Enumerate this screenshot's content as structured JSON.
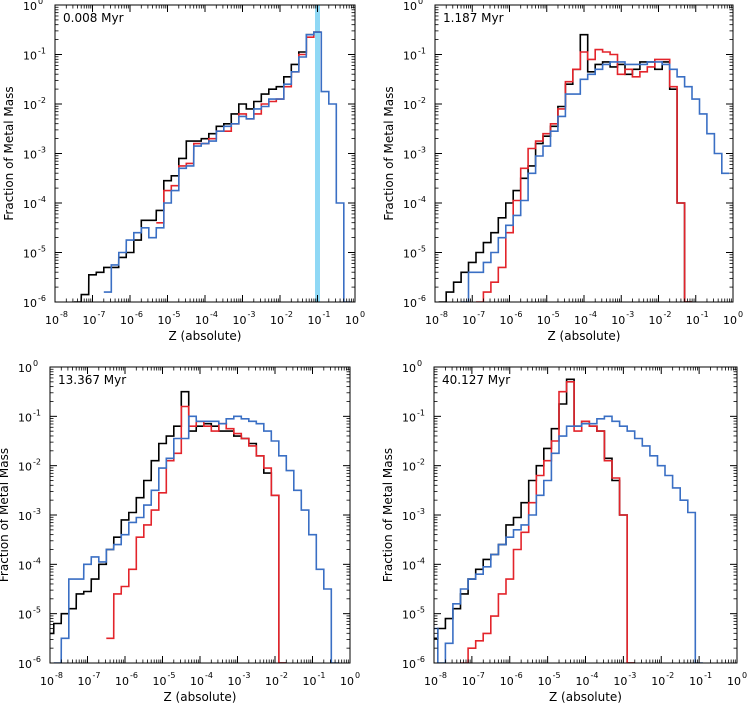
{
  "chart_data": [
    {
      "type": "line",
      "title": "0.008 Myr",
      "xlabel": "Z (absolute)",
      "ylabel": "Fraction of Metal Mass",
      "xscale": "log",
      "yscale": "log",
      "xlim": [
        1e-08,
        1
      ],
      "ylim": [
        1e-06,
        1
      ],
      "xtick_labels": [
        "10",
        "10",
        "10",
        "10",
        "10",
        "10",
        "10",
        "10",
        "10"
      ],
      "xtick_exps": [
        "-8",
        "-7",
        "-6",
        "-5",
        "-4",
        "-3",
        "-2",
        "-1",
        "0"
      ],
      "ytick_labels": [
        "10",
        "10",
        "10",
        "10",
        "10",
        "10",
        "10"
      ],
      "ytick_exps": [
        "-6",
        "-5",
        "-4",
        "-3",
        "-2",
        "-1",
        "0"
      ],
      "highlight_log_x": -1.0,
      "series": [
        {
          "name": "black",
          "color": "#000000",
          "log_x": [
            -7.4,
            -7.2,
            -7.0,
            -6.8,
            -6.6,
            -6.4,
            -6.2,
            -6.0,
            -5.8,
            -5.6,
            -5.4,
            -5.2,
            -5.0,
            -4.8,
            -4.6,
            -4.4,
            -4.2,
            -4.0,
            -3.8,
            -3.6,
            -3.4,
            -3.2,
            -3.0,
            -2.8,
            -2.6,
            -2.4,
            -2.2,
            -2.0,
            -1.8,
            -1.6,
            -1.4,
            -1.2,
            -1.0
          ],
          "log_y": [
            -6.0,
            -5.85,
            -5.45,
            -5.4,
            -5.3,
            -5.3,
            -5.1,
            -5.0,
            -4.75,
            -4.35,
            -4.35,
            -4.15,
            -3.55,
            -3.45,
            -3.1,
            -2.75,
            -2.75,
            -2.7,
            -2.6,
            -2.45,
            -2.4,
            -2.2,
            -2.0,
            -2.1,
            -1.95,
            -1.8,
            -1.7,
            -1.65,
            -1.45,
            -1.2,
            -0.95,
            -0.6,
            -0.55
          ]
        },
        {
          "name": "red",
          "color": "#e3242b",
          "log_x": [
            -5.2,
            -5.0,
            -4.8,
            -4.6,
            -4.4,
            -4.2,
            -4.0,
            -3.8,
            -3.6,
            -3.4,
            -3.2,
            -3.0,
            -2.8,
            -2.6,
            -2.4,
            -2.2,
            -2.0,
            -1.8,
            -1.6,
            -1.4,
            -1.2,
            -1.0
          ],
          "log_y": [
            -4.4,
            -3.75,
            -3.65,
            -3.25,
            -3.2,
            -2.8,
            -2.8,
            -2.7,
            -2.55,
            -2.55,
            -2.4,
            -2.2,
            -2.3,
            -2.2,
            -2.0,
            -1.95,
            -1.9,
            -1.65,
            -1.35,
            -1.0,
            -0.65,
            -0.55
          ]
        },
        {
          "name": "blue",
          "color": "#3a6fc4",
          "log_x": [
            -6.6,
            -6.4,
            -6.2,
            -6.0,
            -5.8,
            -5.6,
            -5.4,
            -5.2,
            -5.0,
            -4.8,
            -4.6,
            -4.4,
            -4.2,
            -4.0,
            -3.8,
            -3.6,
            -3.4,
            -3.2,
            -3.0,
            -2.8,
            -2.6,
            -2.4,
            -2.2,
            -2.0,
            -1.8,
            -1.6,
            -1.4,
            -1.2,
            -1.0,
            -0.8,
            -0.6,
            -0.4,
            -0.2
          ],
          "log_y": [
            -5.8,
            -5.25,
            -5.0,
            -4.75,
            -4.6,
            -4.5,
            -4.7,
            -4.5,
            -4.0,
            -3.75,
            -3.3,
            -3.25,
            -2.85,
            -2.8,
            -2.75,
            -2.55,
            -2.45,
            -2.4,
            -2.25,
            -2.3,
            -2.1,
            -2.05,
            -1.9,
            -1.9,
            -1.6,
            -1.35,
            -1.05,
            -0.6,
            -0.55,
            -1.75,
            -2.0,
            -4.0,
            -6.0
          ]
        }
      ]
    },
    {
      "type": "line",
      "title": "1.187 Myr",
      "xlabel": "Z (absolute)",
      "ylabel": "Fraction of Metal Mass",
      "xscale": "log",
      "yscale": "log",
      "xlim": [
        1e-08,
        1
      ],
      "ylim": [
        1e-06,
        1
      ],
      "xtick_labels": [
        "10",
        "10",
        "10",
        "10",
        "10",
        "10",
        "10",
        "10",
        "10"
      ],
      "xtick_exps": [
        "-8",
        "-7",
        "-6",
        "-5",
        "-4",
        "-3",
        "-2",
        "-1",
        "0"
      ],
      "ytick_labels": [
        "10",
        "10",
        "10",
        "10",
        "10",
        "10",
        "10"
      ],
      "ytick_exps": [
        "-6",
        "-5",
        "-4",
        "-3",
        "-2",
        "-1",
        "0"
      ],
      "series": [
        {
          "name": "black",
          "color": "#000000",
          "log_x": [
            -7.8,
            -7.6,
            -7.4,
            -7.2,
            -7.0,
            -6.8,
            -6.6,
            -6.4,
            -6.2,
            -6.0,
            -5.8,
            -5.6,
            -5.4,
            -5.2,
            -5.0,
            -4.8,
            -4.6,
            -4.4,
            -4.2,
            -4.0,
            -3.8,
            -3.6,
            -3.4,
            -3.2,
            -3.0,
            -2.8,
            -2.6,
            -2.4,
            -2.2,
            -2.0,
            -1.8,
            -1.6,
            -1.4,
            -1.2
          ],
          "log_y": [
            -6.0,
            -5.8,
            -5.6,
            -5.4,
            -5.2,
            -5.0,
            -4.8,
            -4.6,
            -4.3,
            -4.0,
            -3.75,
            -3.5,
            -3.25,
            -2.8,
            -2.65,
            -2.45,
            -2.05,
            -1.6,
            -1.3,
            -0.6,
            -1.35,
            -1.2,
            -1.15,
            -1.25,
            -1.2,
            -1.4,
            -1.3,
            -1.15,
            -1.15,
            -1.3,
            -1.15,
            -1.7,
            -4.0,
            -6.0
          ]
        },
        {
          "name": "red",
          "color": "#e3242b",
          "log_x": [
            -6.8,
            -6.6,
            -6.4,
            -6.2,
            -6.0,
            -5.8,
            -5.6,
            -5.4,
            -5.2,
            -5.0,
            -4.8,
            -4.6,
            -4.4,
            -4.2,
            -4.0,
            -3.8,
            -3.6,
            -3.4,
            -3.2,
            -3.0,
            -2.8,
            -2.6,
            -2.4,
            -2.2,
            -2.0,
            -1.8,
            -1.6,
            -1.4,
            -1.2
          ],
          "log_y": [
            -6.0,
            -5.8,
            -5.6,
            -5.3,
            -4.6,
            -3.95,
            -3.3,
            -2.9,
            -2.75,
            -2.6,
            -2.4,
            -2.1,
            -1.55,
            -1.3,
            -0.95,
            -1.1,
            -0.9,
            -0.95,
            -1.0,
            -1.4,
            -1.3,
            -1.45,
            -1.35,
            -1.25,
            -1.1,
            -1.1,
            -1.65,
            -4.0,
            -6.0
          ]
        },
        {
          "name": "blue",
          "color": "#3a6fc4",
          "log_x": [
            -7.2,
            -7.0,
            -6.8,
            -6.6,
            -6.4,
            -6.2,
            -6.0,
            -5.8,
            -5.6,
            -5.4,
            -5.2,
            -5.0,
            -4.8,
            -4.6,
            -4.4,
            -4.2,
            -4.0,
            -3.8,
            -3.6,
            -3.4,
            -3.2,
            -3.0,
            -2.8,
            -2.6,
            -2.4,
            -2.2,
            -2.0,
            -1.8,
            -1.6,
            -1.4,
            -1.2,
            -1.0,
            -0.8,
            -0.6,
            -0.4,
            -0.2
          ],
          "log_y": [
            -6.0,
            -5.4,
            -5.4,
            -5.2,
            -5.0,
            -4.7,
            -4.45,
            -4.25,
            -3.95,
            -3.4,
            -3.05,
            -2.85,
            -2.55,
            -2.25,
            -1.8,
            -1.8,
            -1.5,
            -1.4,
            -1.3,
            -1.2,
            -1.15,
            -1.15,
            -1.2,
            -1.2,
            -1.2,
            -1.15,
            -1.15,
            -1.2,
            -1.3,
            -1.45,
            -1.65,
            -1.9,
            -2.2,
            -2.6,
            -3.0,
            -3.4
          ]
        }
      ]
    },
    {
      "type": "line",
      "title": "13.367 Myr",
      "xlabel": "Z (absolute)",
      "ylabel": "Fraction of Metal Mass",
      "xscale": "log",
      "yscale": "log",
      "xlim": [
        1e-08,
        1
      ],
      "ylim": [
        1e-06,
        1
      ],
      "xtick_labels": [
        "10",
        "10",
        "10",
        "10",
        "10",
        "10",
        "10",
        "10",
        "10"
      ],
      "xtick_exps": [
        "-8",
        "-7",
        "-6",
        "-5",
        "-4",
        "-3",
        "-2",
        "-1",
        "0"
      ],
      "ytick_labels": [
        "10",
        "10",
        "10",
        "10",
        "10",
        "10",
        "10"
      ],
      "ytick_exps": [
        "-6",
        "-5",
        "-4",
        "-3",
        "-2",
        "-1",
        "0"
      ],
      "series": [
        {
          "name": "black",
          "color": "#000000",
          "log_x": [
            -8.0,
            -7.8,
            -7.6,
            -7.4,
            -7.2,
            -7.0,
            -6.8,
            -6.6,
            -6.4,
            -6.2,
            -6.0,
            -5.8,
            -5.6,
            -5.4,
            -5.2,
            -5.0,
            -4.8,
            -4.6,
            -4.4,
            -4.2,
            -4.0,
            -3.8,
            -3.6,
            -3.4,
            -3.2,
            -3.0,
            -2.8,
            -2.6,
            -2.4,
            -2.2,
            -2.0,
            -1.8
          ],
          "log_y": [
            -5.4,
            -5.2,
            -5.0,
            -4.9,
            -4.6,
            -4.55,
            -4.3,
            -4.0,
            -3.7,
            -3.45,
            -3.1,
            -2.95,
            -2.65,
            -2.3,
            -1.9,
            -1.55,
            -1.4,
            -1.2,
            -0.5,
            -1.3,
            -1.2,
            -1.15,
            -1.2,
            -1.3,
            -1.3,
            -1.4,
            -1.45,
            -1.55,
            -1.8,
            -2.15,
            -2.6,
            -6.0
          ]
        },
        {
          "name": "red",
          "color": "#e3242b",
          "log_x": [
            -6.4,
            -6.2,
            -6.0,
            -5.8,
            -5.6,
            -5.4,
            -5.2,
            -5.0,
            -4.8,
            -4.6,
            -4.4,
            -4.2,
            -4.0,
            -3.8,
            -3.6,
            -3.4,
            -3.2,
            -3.0,
            -2.8,
            -2.6,
            -2.4,
            -2.2,
            -2.0,
            -1.8
          ],
          "log_y": [
            -5.5,
            -4.6,
            -4.45,
            -4.1,
            -3.45,
            -3.2,
            -2.9,
            -2.55,
            -1.9,
            -1.75,
            -0.8,
            -1.2,
            -1.1,
            -1.2,
            -1.3,
            -1.15,
            -1.25,
            -1.35,
            -1.45,
            -1.6,
            -1.8,
            -2.05,
            -2.6,
            -6.0
          ]
        },
        {
          "name": "blue",
          "color": "#3a6fc4",
          "log_x": [
            -7.8,
            -7.6,
            -7.4,
            -7.2,
            -7.0,
            -6.8,
            -6.6,
            -6.4,
            -6.2,
            -6.0,
            -5.8,
            -5.6,
            -5.4,
            -5.2,
            -5.0,
            -4.8,
            -4.6,
            -4.4,
            -4.2,
            -4.0,
            -3.8,
            -3.6,
            -3.4,
            -3.2,
            -3.0,
            -2.8,
            -2.6,
            -2.4,
            -2.2,
            -2.0,
            -1.8,
            -1.6,
            -1.4,
            -1.2,
            -1.0,
            -0.8,
            -0.6,
            -0.4
          ],
          "log_y": [
            -6.0,
            -5.5,
            -4.3,
            -4.3,
            -4.0,
            -3.85,
            -3.95,
            -3.7,
            -3.6,
            -3.4,
            -3.15,
            -3.05,
            -2.8,
            -2.5,
            -2.05,
            -1.85,
            -1.45,
            -1.45,
            -1.0,
            -1.1,
            -1.1,
            -1.1,
            -1.15,
            -1.05,
            -1.0,
            -1.05,
            -1.1,
            -1.15,
            -1.3,
            -1.5,
            -1.8,
            -2.1,
            -2.5,
            -2.9,
            -3.4,
            -4.1,
            -4.5,
            -6.0
          ]
        }
      ]
    },
    {
      "type": "line",
      "title": "40.127 Myr",
      "xlabel": "Z (absolute)",
      "ylabel": "Fraction of Metal Mass",
      "xscale": "log",
      "yscale": "log",
      "xlim": [
        1e-08,
        1
      ],
      "ylim": [
        1e-06,
        1
      ],
      "xtick_labels": [
        "10",
        "10",
        "10",
        "10",
        "10",
        "10",
        "10",
        "10",
        "10"
      ],
      "xtick_exps": [
        "-8",
        "-7",
        "-6",
        "-5",
        "-4",
        "-3",
        "-2",
        "-1",
        "0"
      ],
      "ytick_labels": [
        "10",
        "10",
        "10",
        "10",
        "10",
        "10",
        "10"
      ],
      "ytick_exps": [
        "-6",
        "-5",
        "-4",
        "-3",
        "-2",
        "-1",
        "0"
      ],
      "series": [
        {
          "name": "black",
          "color": "#000000",
          "log_x": [
            -8.0,
            -7.8,
            -7.6,
            -7.4,
            -7.2,
            -7.0,
            -6.8,
            -6.6,
            -6.4,
            -6.2,
            -6.0,
            -5.8,
            -5.6,
            -5.4,
            -5.2,
            -5.0,
            -4.8,
            -4.6,
            -4.4,
            -4.2,
            -4.0,
            -3.8,
            -3.6,
            -3.4,
            -3.2,
            -3.0,
            -2.8
          ],
          "log_y": [
            -5.5,
            -5.3,
            -5.1,
            -4.9,
            -4.6,
            -4.3,
            -4.1,
            -3.9,
            -3.8,
            -3.6,
            -3.2,
            -3.05,
            -2.75,
            -2.3,
            -2.0,
            -1.65,
            -1.25,
            -0.75,
            -0.25,
            -1.2,
            -1.1,
            -1.2,
            -1.3,
            -1.85,
            -2.3,
            -3.0,
            -6.0
          ]
        },
        {
          "name": "red",
          "color": "#e3242b",
          "log_x": [
            -7.2,
            -7.0,
            -6.8,
            -6.6,
            -6.4,
            -6.2,
            -6.0,
            -5.8,
            -5.6,
            -5.4,
            -5.2,
            -5.0,
            -4.8,
            -4.6,
            -4.4,
            -4.2,
            -4.0,
            -3.8,
            -3.6,
            -3.4,
            -3.2,
            -3.0,
            -2.8
          ],
          "log_y": [
            -6.0,
            -5.7,
            -5.55,
            -5.4,
            -5.05,
            -4.6,
            -4.3,
            -3.7,
            -3.35,
            -2.75,
            -2.2,
            -1.9,
            -1.5,
            -0.5,
            -0.3,
            -1.3,
            -1.1,
            -1.2,
            -1.3,
            -1.9,
            -2.25,
            -3.0,
            -6.0
          ]
        },
        {
          "name": "blue",
          "color": "#3a6fc4",
          "log_x": [
            -8.0,
            -7.8,
            -7.6,
            -7.4,
            -7.2,
            -7.0,
            -6.8,
            -6.6,
            -6.4,
            -6.2,
            -6.0,
            -5.8,
            -5.6,
            -5.4,
            -5.2,
            -5.0,
            -4.8,
            -4.6,
            -4.4,
            -4.2,
            -4.0,
            -3.8,
            -3.6,
            -3.4,
            -3.2,
            -3.0,
            -2.8,
            -2.6,
            -2.4,
            -2.2,
            -2.0,
            -1.8,
            -1.6,
            -1.4,
            -1.2,
            -1.0
          ],
          "log_y": [
            -5.3,
            -6.0,
            -5.6,
            -4.8,
            -4.5,
            -4.3,
            -4.2,
            -4.05,
            -3.8,
            -3.6,
            -3.45,
            -3.3,
            -3.2,
            -3.0,
            -2.6,
            -2.3,
            -1.75,
            -1.4,
            -1.2,
            -1.2,
            -1.15,
            -1.15,
            -1.05,
            -1.0,
            -1.1,
            -1.2,
            -1.3,
            -1.45,
            -1.6,
            -1.8,
            -2.0,
            -2.2,
            -2.45,
            -2.7,
            -2.95,
            -6.0
          ]
        }
      ]
    }
  ]
}
